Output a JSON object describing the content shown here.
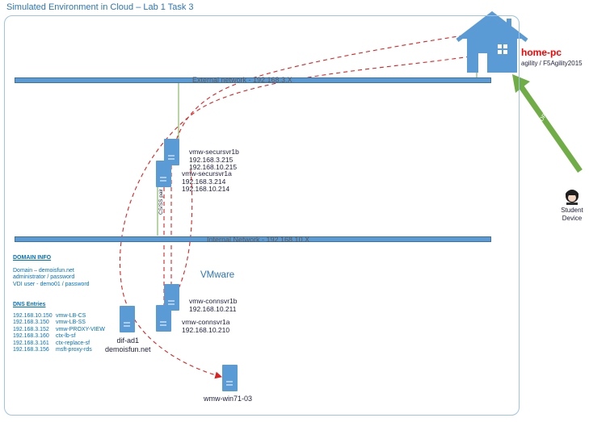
{
  "title": "Simulated Environment in Cloud – Lab 1 Task 3",
  "networks": {
    "external": "External network - 192.168.3.X",
    "internal": "Internal Network - 192.168.10.X"
  },
  "home_pc": {
    "name": "home-pc",
    "credentials": "agility / F5Agility2015"
  },
  "student_device": "Student Device",
  "rdp_label": "RDP",
  "cs_ss_label": "CS/SS pair",
  "vmware_label": "VMware",
  "servers": {
    "secursvr1b": {
      "name": "vmw-secursvr1b",
      "ip1": "192.168.3.215",
      "ip2": "192.168.10.215"
    },
    "secursvr1a": {
      "name": "vmw-secursvr1a",
      "ip1": "192.168.3.214",
      "ip2": "192.168.10.214"
    },
    "connsvr1b": {
      "name": "vmw-connsvr1b",
      "ip1": "192.168.10.211"
    },
    "connsvr1a": {
      "name": "vmw-connsvr1a",
      "ip1": "192.168.10.210"
    },
    "dif_ad1": {
      "name": "dif-ad1",
      "domain": "demoisfun.net"
    },
    "win71": {
      "name": "wmw-win71-03"
    }
  },
  "domain_info": {
    "heading": "DOMAIN INFO",
    "lines": [
      "Domain – demoisfun.net",
      "administrator / password",
      "VDI user - demo01 / password"
    ]
  },
  "dns_entries": {
    "heading": "DNS Entries",
    "rows": [
      {
        "ip": "192.168.10.150",
        "host": "vmw-LB-CS"
      },
      {
        "ip": "192.168.3.150",
        "host": "vmw-LB-SS"
      },
      {
        "ip": "192.168.3.152",
        "host": "vmw-PROXY-VIEW"
      },
      {
        "ip": "192.168.3.160",
        "host": "ctx-lb-sf"
      },
      {
        "ip": "192.168.3.161",
        "host": "ctx-replace-sf"
      },
      {
        "ip": "192.168.3.156",
        "host": "msft-proxy-rds"
      }
    ]
  },
  "colors": {
    "network_bar": "#5b9bd5",
    "server": "#5b9bd5",
    "house": "#5b9bd5",
    "rdp_arrow": "#70ad47",
    "dashed_path": "#e02020",
    "title": "#2e75b6",
    "home_pc_label": "#ff0000"
  },
  "icons": [
    "house-icon",
    "server-icon",
    "person-icon",
    "arrow-up-icon"
  ]
}
